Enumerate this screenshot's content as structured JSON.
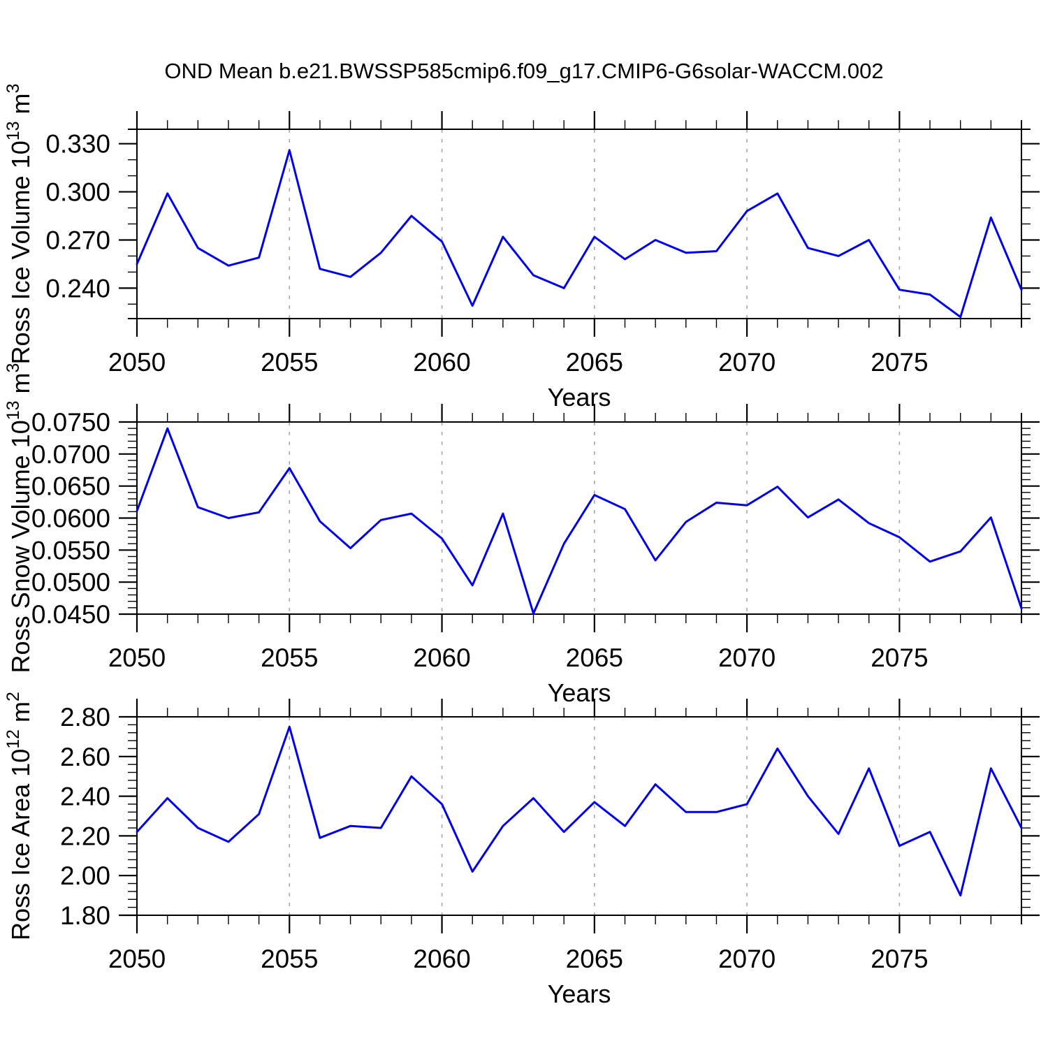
{
  "title": "OND Mean b.e21.BWSSP585cmip6.f09_g17.CMIP6-G6solar-WACCM.002",
  "colors": {
    "line": "#0000ee",
    "axis": "#000000",
    "gridline": "#a8a8a8",
    "text": "#000000",
    "background": "#ffffff"
  },
  "chart_data": [
    {
      "name": "ross-ice-volume",
      "type": "line",
      "ylabel": "Ross Ice Volume 10^13 m^3",
      "ylabel_parts": [
        {
          "t": "Ross Ice Volume 10"
        },
        {
          "sup": "13"
        },
        {
          "t": " m"
        },
        {
          "sup": "3"
        }
      ],
      "xlabel": "Years",
      "x": [
        2050,
        2051,
        2052,
        2053,
        2054,
        2055,
        2056,
        2057,
        2058,
        2059,
        2060,
        2061,
        2062,
        2063,
        2064,
        2065,
        2066,
        2067,
        2068,
        2069,
        2070,
        2071,
        2072,
        2073,
        2074,
        2075,
        2076,
        2077,
        2078,
        2079
      ],
      "values": [
        0.255,
        0.299,
        0.265,
        0.254,
        0.259,
        0.326,
        0.252,
        0.247,
        0.262,
        0.285,
        0.269,
        0.229,
        0.272,
        0.248,
        0.24,
        0.272,
        0.258,
        0.27,
        0.262,
        0.263,
        0.288,
        0.299,
        0.265,
        0.26,
        0.27,
        0.239,
        0.236,
        0.222,
        0.284,
        0.239
      ],
      "xlim": [
        2050,
        2079
      ],
      "ylim": [
        0.221,
        0.339
      ],
      "yticks_major": [
        0.24,
        0.27,
        0.3,
        0.33
      ],
      "ytick_decimals": 3,
      "yminor_step": 0.01,
      "xticks_major": [
        2050,
        2055,
        2060,
        2065,
        2070,
        2075
      ],
      "xminor_step": 1,
      "gridlines_x": [
        2055,
        2060,
        2065,
        2070,
        2075
      ]
    },
    {
      "name": "ross-snow-volume",
      "type": "line",
      "ylabel": "Ross Snow Volume 10^13 m^3",
      "ylabel_parts": [
        {
          "t": "Ross Snow Volume 10"
        },
        {
          "sup": "13"
        },
        {
          "t": " m"
        },
        {
          "sup": "3"
        }
      ],
      "xlabel": "Years",
      "x": [
        2050,
        2051,
        2052,
        2053,
        2054,
        2055,
        2056,
        2057,
        2058,
        2059,
        2060,
        2061,
        2062,
        2063,
        2064,
        2065,
        2066,
        2067,
        2068,
        2069,
        2070,
        2071,
        2072,
        2073,
        2074,
        2075,
        2076,
        2077,
        2078,
        2079
      ],
      "values": [
        0.0611,
        0.074,
        0.0617,
        0.06,
        0.0609,
        0.0678,
        0.0595,
        0.0553,
        0.0597,
        0.0607,
        0.0568,
        0.0495,
        0.0607,
        0.0451,
        0.056,
        0.0636,
        0.0614,
        0.0534,
        0.0594,
        0.0624,
        0.062,
        0.0649,
        0.0601,
        0.0629,
        0.0592,
        0.057,
        0.0532,
        0.0548,
        0.0601,
        0.0459
      ],
      "xlim": [
        2050,
        2079
      ],
      "ylim": [
        0.045,
        0.075
      ],
      "yticks_major": [
        0.045,
        0.05,
        0.055,
        0.06,
        0.065,
        0.07,
        0.075
      ],
      "ytick_decimals": 4,
      "yminor_step": 0.001,
      "xticks_major": [
        2050,
        2055,
        2060,
        2065,
        2070,
        2075
      ],
      "xminor_step": 1,
      "gridlines_x": [
        2055,
        2060,
        2065,
        2070,
        2075
      ]
    },
    {
      "name": "ross-ice-area",
      "type": "line",
      "ylabel": "Ross Ice Area 10^12 m^2",
      "ylabel_parts": [
        {
          "t": "Ross Ice Area 10"
        },
        {
          "sup": "12"
        },
        {
          "t": " m"
        },
        {
          "sup": "2"
        }
      ],
      "xlabel": "Years",
      "x": [
        2050,
        2051,
        2052,
        2053,
        2054,
        2055,
        2056,
        2057,
        2058,
        2059,
        2060,
        2061,
        2062,
        2063,
        2064,
        2065,
        2066,
        2067,
        2068,
        2069,
        2070,
        2071,
        2072,
        2073,
        2074,
        2075,
        2076,
        2077,
        2078,
        2079
      ],
      "values": [
        2.22,
        2.39,
        2.24,
        2.17,
        2.31,
        2.75,
        2.19,
        2.25,
        2.24,
        2.5,
        2.36,
        2.02,
        2.25,
        2.39,
        2.22,
        2.37,
        2.25,
        2.46,
        2.32,
        2.32,
        2.36,
        2.64,
        2.4,
        2.21,
        2.54,
        2.15,
        2.22,
        1.9,
        2.54,
        2.24
      ],
      "xlim": [
        2050,
        2079
      ],
      "ylim": [
        1.8,
        2.8
      ],
      "yticks_major": [
        1.8,
        2.0,
        2.2,
        2.4,
        2.6,
        2.8
      ],
      "ytick_decimals": 2,
      "yminor_step": 0.04,
      "xticks_major": [
        2050,
        2055,
        2060,
        2065,
        2070,
        2075
      ],
      "xminor_step": 1,
      "gridlines_x": [
        2055,
        2060,
        2065,
        2070,
        2075
      ]
    }
  ]
}
